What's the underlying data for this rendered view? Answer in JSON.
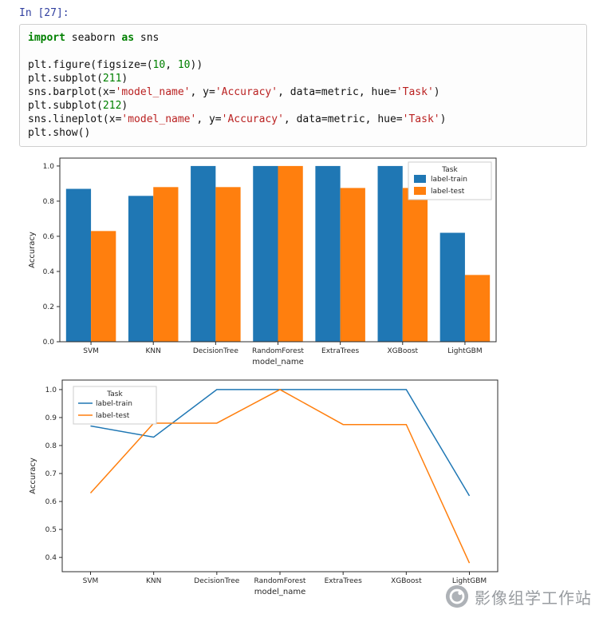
{
  "notebook": {
    "prompt": "In [27]:"
  },
  "code": {
    "lines": [
      [
        {
          "t": "import",
          "c": "kw"
        },
        {
          "t": " seaborn ",
          "c": "pl"
        },
        {
          "t": "as",
          "c": "kw"
        },
        {
          "t": " sns",
          "c": "pl"
        }
      ],
      [],
      [
        {
          "t": "plt.figure(figsize=(",
          "c": "pl"
        },
        {
          "t": "10",
          "c": "num"
        },
        {
          "t": ", ",
          "c": "pl"
        },
        {
          "t": "10",
          "c": "num"
        },
        {
          "t": "))",
          "c": "pl"
        }
      ],
      [
        {
          "t": "plt.subplot(",
          "c": "pl"
        },
        {
          "t": "211",
          "c": "num"
        },
        {
          "t": ")",
          "c": "pl"
        }
      ],
      [
        {
          "t": "sns.barplot(x=",
          "c": "pl"
        },
        {
          "t": "'model_name'",
          "c": "str"
        },
        {
          "t": ", y=",
          "c": "pl"
        },
        {
          "t": "'Accuracy'",
          "c": "str"
        },
        {
          "t": ", data=metric, hue=",
          "c": "pl"
        },
        {
          "t": "'Task'",
          "c": "str"
        },
        {
          "t": ")",
          "c": "pl"
        }
      ],
      [
        {
          "t": "plt.subplot(",
          "c": "pl"
        },
        {
          "t": "212",
          "c": "num"
        },
        {
          "t": ")",
          "c": "pl"
        }
      ],
      [
        {
          "t": "sns.lineplot(x=",
          "c": "pl"
        },
        {
          "t": "'model_name'",
          "c": "str"
        },
        {
          "t": ", y=",
          "c": "pl"
        },
        {
          "t": "'Accuracy'",
          "c": "str"
        },
        {
          "t": ", data=metric, hue=",
          "c": "pl"
        },
        {
          "t": "'Task'",
          "c": "str"
        },
        {
          "t": ")",
          "c": "pl"
        }
      ],
      [
        {
          "t": "plt.show()",
          "c": "pl"
        }
      ]
    ]
  },
  "chart_data": [
    {
      "type": "bar",
      "categories": [
        "SVM",
        "KNN",
        "DecisionTree",
        "RandomForest",
        "ExtraTrees",
        "XGBoost",
        "LightGBM"
      ],
      "series": [
        {
          "name": "label-train",
          "color": "#1f77b4",
          "values": [
            0.87,
            0.83,
            1.0,
            1.0,
            1.0,
            1.0,
            0.62
          ]
        },
        {
          "name": "label-test",
          "color": "#ff7f0e",
          "values": [
            0.63,
            0.88,
            0.88,
            1.0,
            0.875,
            0.875,
            0.38
          ]
        }
      ],
      "title": "",
      "xlabel": "model_name",
      "ylabel": "Accuracy",
      "ylim": [
        0,
        1.045
      ],
      "yticks": [
        0.0,
        0.2,
        0.4,
        0.6,
        0.8,
        1.0
      ],
      "grid": false,
      "legend": {
        "title": "Task",
        "position": "top-right"
      }
    },
    {
      "type": "line",
      "categories": [
        "SVM",
        "KNN",
        "DecisionTree",
        "RandomForest",
        "ExtraTrees",
        "XGBoost",
        "LightGBM"
      ],
      "series": [
        {
          "name": "label-train",
          "color": "#1f77b4",
          "values": [
            0.87,
            0.83,
            1.0,
            1.0,
            1.0,
            1.0,
            0.62
          ]
        },
        {
          "name": "label-test",
          "color": "#ff7f0e",
          "values": [
            0.63,
            0.88,
            0.88,
            1.0,
            0.875,
            0.875,
            0.38
          ]
        }
      ],
      "title": "",
      "xlabel": "model_name",
      "ylabel": "Accuracy",
      "ylim": [
        0.349,
        1.034
      ],
      "yticks": [
        0.4,
        0.5,
        0.6,
        0.7,
        0.8,
        0.9,
        1.0
      ],
      "grid": false,
      "legend": {
        "title": "Task",
        "position": "top-left"
      }
    }
  ],
  "watermark": {
    "text": "影像组学工作站"
  }
}
